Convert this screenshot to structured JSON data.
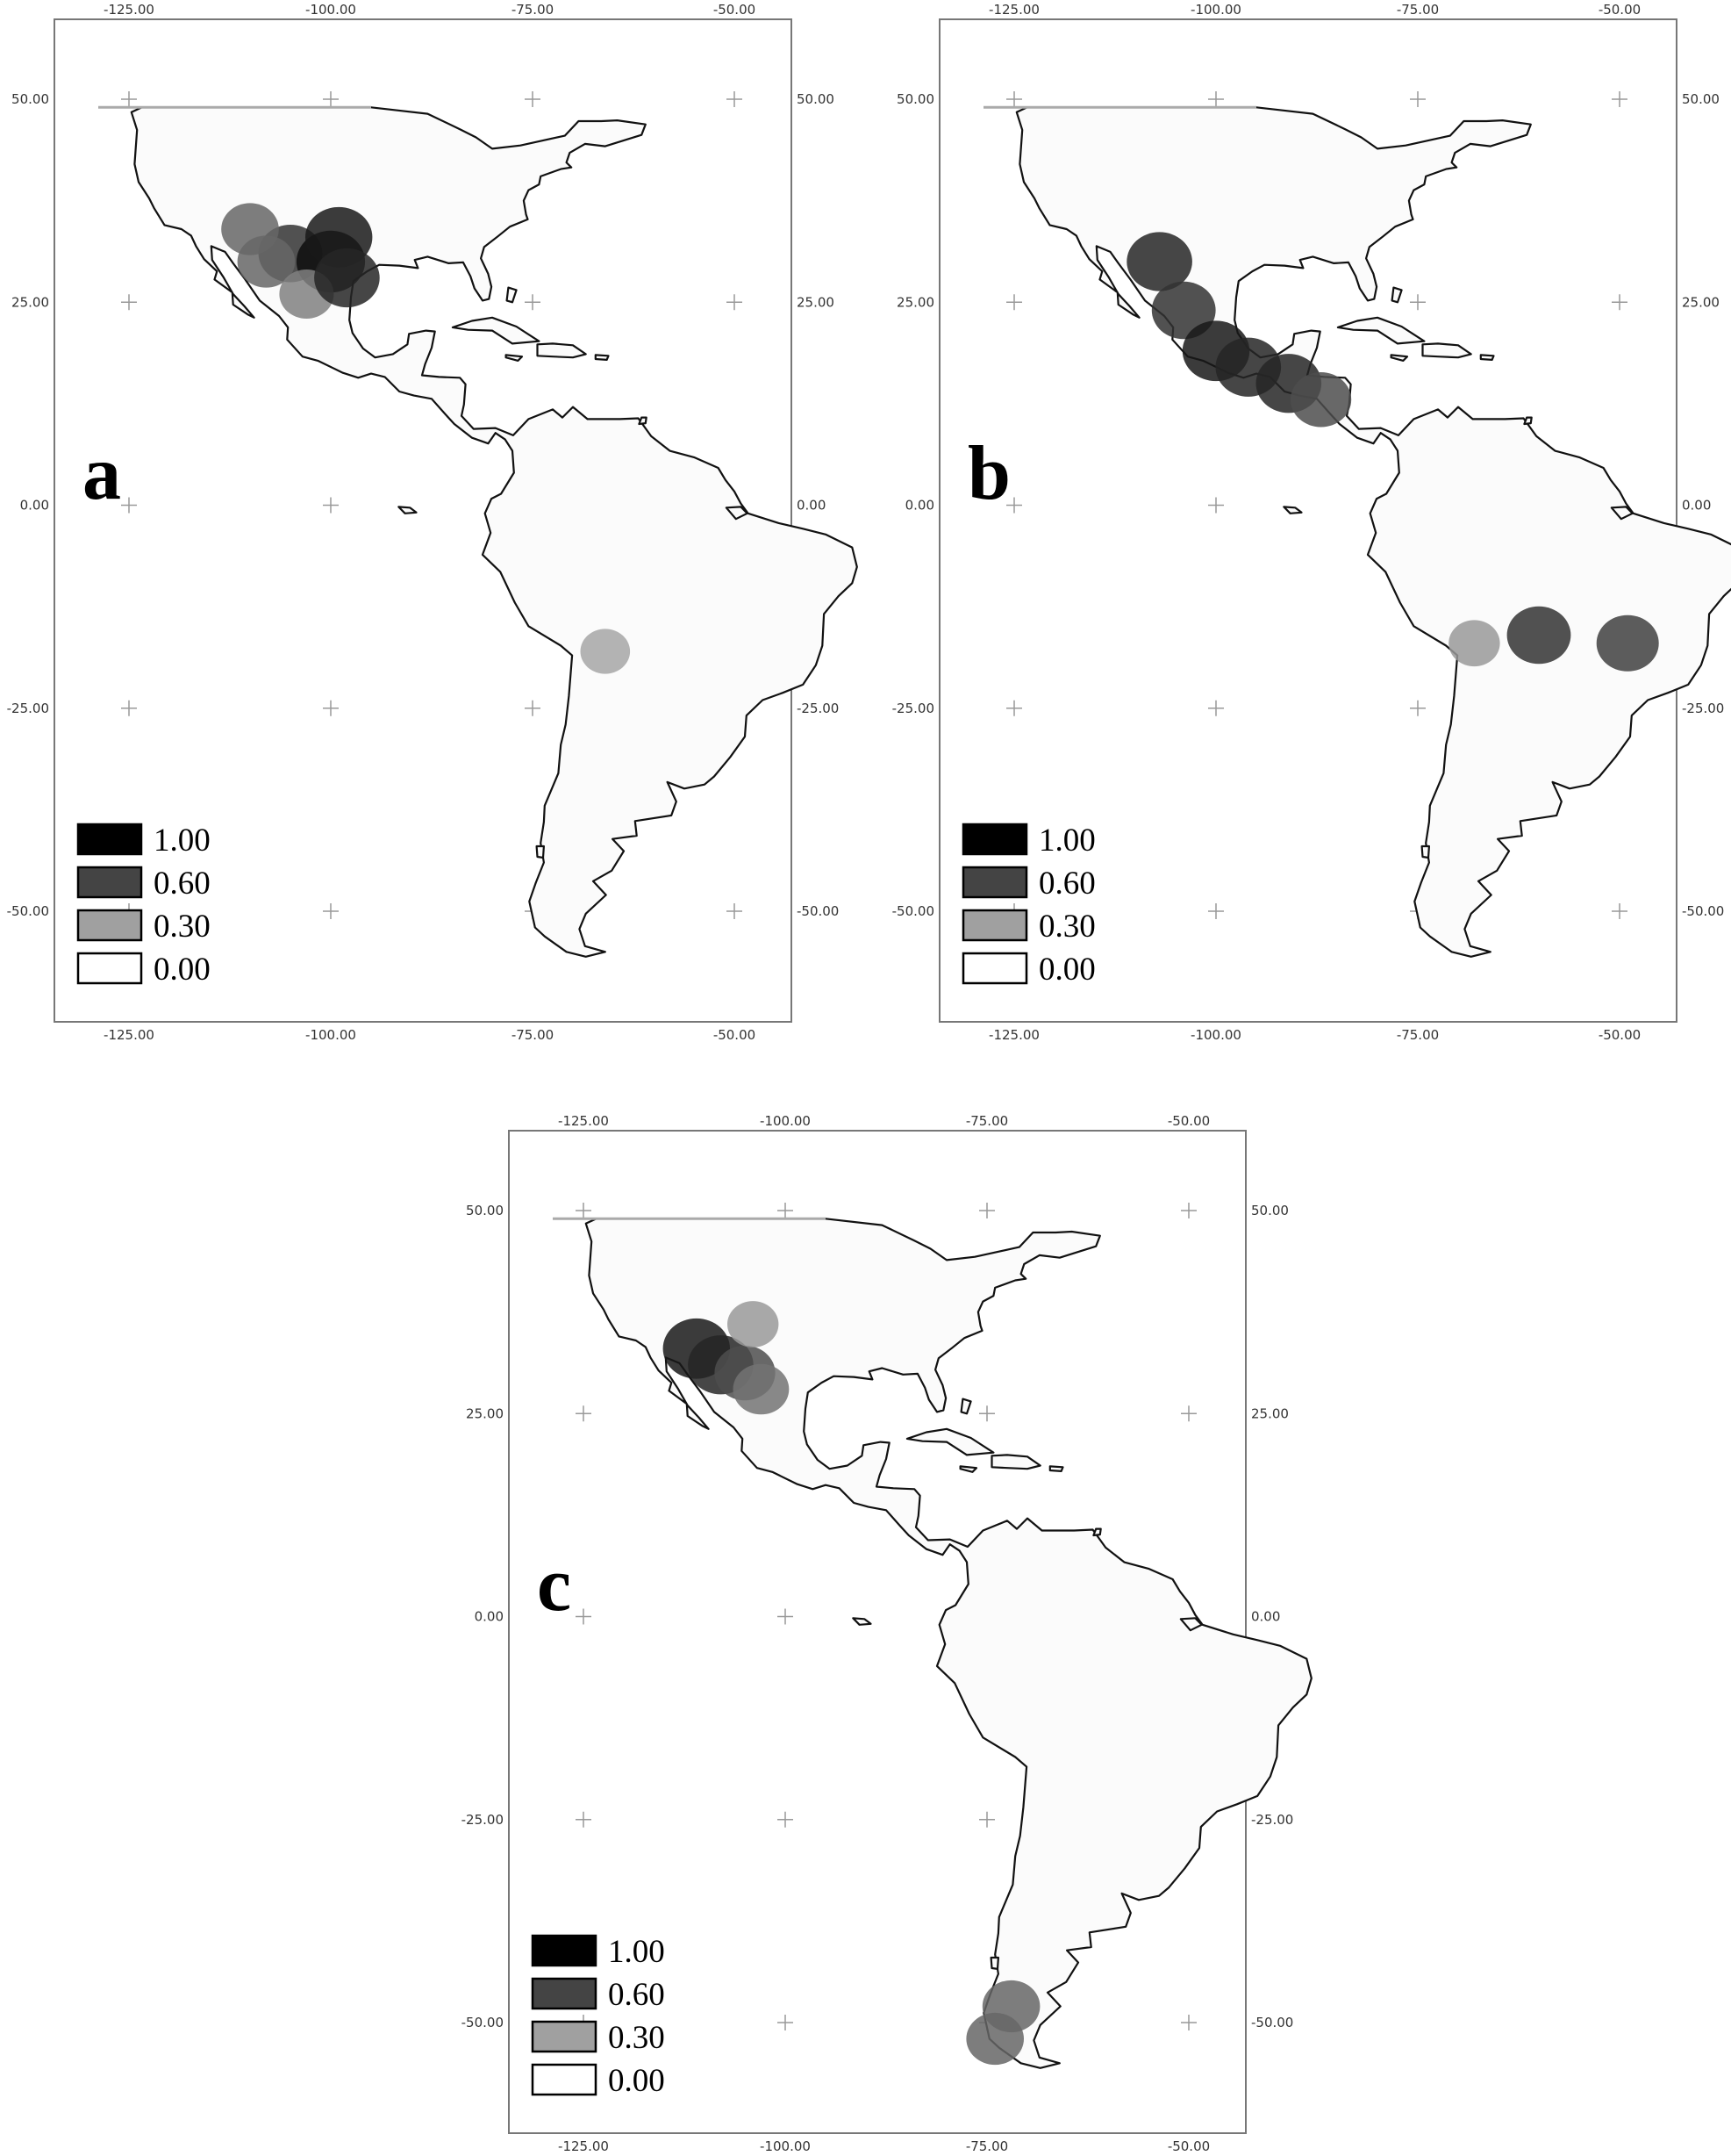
{
  "axes": {
    "x_ticks": [
      "-125.00",
      "-100.00",
      "-75.00",
      "-50.00"
    ],
    "y_ticks": [
      "50.00",
      "25.00",
      "0.00",
      "-25.00",
      "-50.00"
    ],
    "x_values": [
      -125,
      -100,
      -75,
      -50
    ],
    "y_values": [
      50,
      25,
      0,
      -25,
      -50
    ]
  },
  "legend": [
    {
      "label": "1.00",
      "color": "#000000"
    },
    {
      "label": "0.60",
      "color": "#444444"
    },
    {
      "label": "0.30",
      "color": "#a0a0a0"
    },
    {
      "label": "0.00",
      "color": "#ffffff"
    }
  ],
  "panels": [
    {
      "label": "a",
      "hotspots": [
        {
          "lon": -105,
          "lat": 31,
          "value": 0.8
        },
        {
          "lon": -100,
          "lat": 30,
          "value": 0.95
        },
        {
          "lon": -99,
          "lat": 33,
          "value": 0.9
        },
        {
          "lon": -110,
          "lat": 34,
          "value": 0.6
        },
        {
          "lon": -108,
          "lat": 30,
          "value": 0.6
        },
        {
          "lon": -103,
          "lat": 26,
          "value": 0.5
        },
        {
          "lon": -98,
          "lat": 28,
          "value": 0.85
        },
        {
          "lon": -66,
          "lat": -18,
          "value": 0.35
        }
      ]
    },
    {
      "label": "b",
      "hotspots": [
        {
          "lon": -107,
          "lat": 30,
          "value": 0.85
        },
        {
          "lon": -104,
          "lat": 24,
          "value": 0.8
        },
        {
          "lon": -100,
          "lat": 19,
          "value": 0.9
        },
        {
          "lon": -96,
          "lat": 17,
          "value": 0.85
        },
        {
          "lon": -91,
          "lat": 15,
          "value": 0.85
        },
        {
          "lon": -87,
          "lat": 13,
          "value": 0.7
        },
        {
          "lon": -60,
          "lat": -16,
          "value": 0.8
        },
        {
          "lon": -49,
          "lat": -17,
          "value": 0.75
        },
        {
          "lon": -68,
          "lat": -17,
          "value": 0.4
        }
      ]
    },
    {
      "label": "c",
      "hotspots": [
        {
          "lon": -111,
          "lat": 33,
          "value": 0.9
        },
        {
          "lon": -108,
          "lat": 31,
          "value": 0.85
        },
        {
          "lon": -105,
          "lat": 30,
          "value": 0.7
        },
        {
          "lon": -104,
          "lat": 36,
          "value": 0.4
        },
        {
          "lon": -103,
          "lat": 28,
          "value": 0.55
        },
        {
          "lon": -72,
          "lat": -48,
          "value": 0.6
        },
        {
          "lon": -74,
          "lat": -52,
          "value": 0.6
        }
      ]
    }
  ]
}
